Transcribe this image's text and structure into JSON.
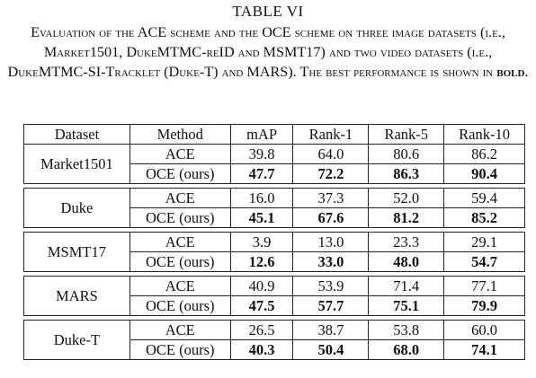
{
  "table_label": "TABLE VI",
  "caption": {
    "text": "Evaluation of the ACE scheme and the OCE scheme on three image datasets (i.e., Market1501, DukeMTMC-reID and MSMT17) and two video datasets (i.e., DukeMTMC-SI-Tracklet (Duke-T) and MARS). The best performance is shown in ",
    "bold_word": "bold",
    "end": "."
  },
  "headers": [
    "Dataset",
    "Method",
    "mAP",
    "Rank-1",
    "Rank-5",
    "Rank-10"
  ],
  "groups": [
    {
      "dataset": "Market1501",
      "rows": [
        {
          "method": "ACE",
          "values": [
            "39.8",
            "64.0",
            "80.6",
            "86.2"
          ]
        },
        {
          "method": "OCE (ours)",
          "values": [
            "47.7",
            "72.2",
            "86.3",
            "90.4"
          ]
        }
      ]
    },
    {
      "dataset": "Duke",
      "rows": [
        {
          "method": "ACE",
          "values": [
            "16.0",
            "37.3",
            "52.0",
            "59.4"
          ]
        },
        {
          "method": "OCE (ours)",
          "values": [
            "45.1",
            "67.6",
            "81.2",
            "85.2"
          ]
        }
      ]
    },
    {
      "dataset": "MSMT17",
      "rows": [
        {
          "method": "ACE",
          "values": [
            "3.9",
            "13.0",
            "23.3",
            "29.1"
          ]
        },
        {
          "method": "OCE (ours)",
          "values": [
            "12.6",
            "33.0",
            "48.0",
            "54.7"
          ]
        }
      ]
    },
    {
      "dataset": "MARS",
      "rows": [
        {
          "method": "ACE",
          "values": [
            "40.9",
            "53.9",
            "71.4",
            "77.1"
          ]
        },
        {
          "method": "OCE (ours)",
          "values": [
            "47.5",
            "57.7",
            "75.1",
            "79.9"
          ]
        }
      ]
    },
    {
      "dataset": "Duke-T",
      "rows": [
        {
          "method": "ACE",
          "values": [
            "26.5",
            "38.7",
            "53.8",
            "60.0"
          ]
        },
        {
          "method": "OCE (ours)",
          "values": [
            "40.3",
            "50.4",
            "68.0",
            "74.1"
          ]
        }
      ]
    }
  ]
}
